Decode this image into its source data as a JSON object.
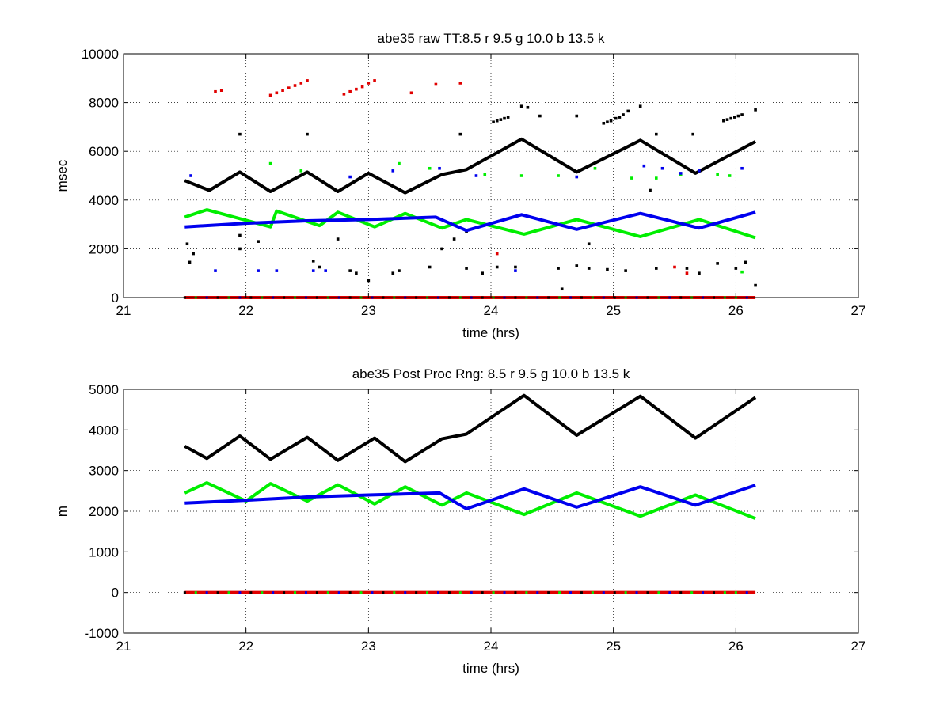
{
  "colors": {
    "red": "#e00000",
    "green": "#00ee00",
    "blue": "#0000ee",
    "black": "#000000"
  },
  "chart_data": [
    {
      "type": "scatter",
      "title": "abe35 raw TT:8.5 r  9.5 g  10.0 b  13.5 k",
      "xlabel": "time (hrs)",
      "ylabel": "msec",
      "xlim": [
        21,
        27
      ],
      "ylim": [
        0,
        10000
      ],
      "xticks": [
        21,
        22,
        23,
        24,
        25,
        26,
        27
      ],
      "yticks": [
        0,
        2000,
        4000,
        6000,
        8000,
        10000
      ],
      "grid": true,
      "series": [
        {
          "color": "black",
          "line": [
            [
              21.5,
              4800
            ],
            [
              21.7,
              4400
            ],
            [
              21.95,
              5150
            ],
            [
              22.2,
              4350
            ],
            [
              22.5,
              5150
            ],
            [
              22.75,
              4350
            ],
            [
              23.0,
              5100
            ],
            [
              23.3,
              4300
            ],
            [
              23.6,
              5050
            ],
            [
              23.8,
              5250
            ],
            [
              24.25,
              6500
            ],
            [
              24.7,
              5150
            ],
            [
              25.22,
              6450
            ],
            [
              25.67,
              5100
            ],
            [
              26.16,
              6400
            ]
          ],
          "points": [
            [
              21.52,
              2200
            ],
            [
              21.54,
              1450
            ],
            [
              21.57,
              1800
            ],
            [
              21.95,
              6700
            ],
            [
              21.95,
              2550
            ],
            [
              21.95,
              2000
            ],
            [
              22.1,
              2300
            ],
            [
              22.5,
              6700
            ],
            [
              22.55,
              1500
            ],
            [
              22.6,
              1250
            ],
            [
              22.75,
              2400
            ],
            [
              22.85,
              1100
            ],
            [
              22.9,
              1000
            ],
            [
              23.0,
              700
            ],
            [
              23.2,
              1000
            ],
            [
              23.25,
              1100
            ],
            [
              23.5,
              1250
            ],
            [
              23.6,
              2000
            ],
            [
              23.7,
              2400
            ],
            [
              23.75,
              6700
            ],
            [
              23.8,
              1200
            ],
            [
              23.8,
              2700
            ],
            [
              23.93,
              1000
            ],
            [
              24.05,
              1250
            ],
            [
              24.2,
              1250
            ],
            [
              24.55,
              1200
            ],
            [
              24.58,
              350
            ],
            [
              24.7,
              1300
            ],
            [
              24.8,
              1200
            ],
            [
              24.8,
              2200
            ],
            [
              24.95,
              1150
            ],
            [
              25.1,
              1100
            ],
            [
              25.3,
              4400
            ],
            [
              25.35,
              1200
            ],
            [
              25.6,
              1200
            ],
            [
              25.7,
              1000
            ],
            [
              25.85,
              1400
            ],
            [
              26.0,
              1200
            ],
            [
              26.08,
              1450
            ],
            [
              26.16,
              500
            ],
            [
              26.16,
              7700
            ],
            [
              24.02,
              7200
            ],
            [
              24.05,
              7250
            ],
            [
              24.08,
              7300
            ],
            [
              24.11,
              7350
            ],
            [
              24.14,
              7400
            ],
            [
              24.25,
              7850
            ],
            [
              24.3,
              7800
            ],
            [
              24.4,
              7450
            ],
            [
              24.7,
              7450
            ],
            [
              24.92,
              7150
            ],
            [
              24.95,
              7200
            ],
            [
              24.98,
              7250
            ],
            [
              25.02,
              7350
            ],
            [
              25.05,
              7400
            ],
            [
              25.08,
              7500
            ],
            [
              25.12,
              7650
            ],
            [
              25.22,
              7850
            ],
            [
              25.35,
              6700
            ],
            [
              25.65,
              6700
            ],
            [
              25.9,
              7250
            ],
            [
              25.93,
              7300
            ],
            [
              25.96,
              7350
            ],
            [
              25.99,
              7400
            ],
            [
              26.02,
              7450
            ],
            [
              26.05,
              7500
            ]
          ]
        },
        {
          "color": "green",
          "line": [
            [
              21.5,
              3300
            ],
            [
              21.68,
              3600
            ],
            [
              22.2,
              2900
            ],
            [
              22.25,
              3550
            ],
            [
              22.6,
              2950
            ],
            [
              22.75,
              3500
            ],
            [
              23.05,
              2900
            ],
            [
              23.3,
              3450
            ],
            [
              23.6,
              2850
            ],
            [
              23.8,
              3200
            ],
            [
              24.27,
              2600
            ],
            [
              24.7,
              3200
            ],
            [
              25.22,
              2500
            ],
            [
              25.7,
              3200
            ],
            [
              26.16,
              2450
            ]
          ],
          "points": [
            [
              22.2,
              5500
            ],
            [
              22.45,
              5200
            ],
            [
              23.25,
              5500
            ],
            [
              23.5,
              5300
            ],
            [
              23.95,
              5050
            ],
            [
              24.25,
              5000
            ],
            [
              24.55,
              5000
            ],
            [
              24.85,
              5300
            ],
            [
              25.15,
              4900
            ],
            [
              25.35,
              4900
            ],
            [
              25.55,
              5050
            ],
            [
              25.85,
              5050
            ],
            [
              25.95,
              5000
            ],
            [
              26.05,
              1050
            ]
          ]
        },
        {
          "color": "blue",
          "line": [
            [
              21.5,
              2900
            ],
            [
              22.0,
              3050
            ],
            [
              22.5,
              3150
            ],
            [
              23.0,
              3200
            ],
            [
              23.55,
              3300
            ],
            [
              23.8,
              2750
            ],
            [
              24.25,
              3400
            ],
            [
              24.7,
              2800
            ],
            [
              25.22,
              3450
            ],
            [
              25.7,
              2850
            ],
            [
              26.16,
              3500
            ]
          ],
          "points": [
            [
              21.55,
              5000
            ],
            [
              21.75,
              1100
            ],
            [
              22.1,
              1100
            ],
            [
              22.25,
              1100
            ],
            [
              22.55,
              1100
            ],
            [
              22.65,
              1100
            ],
            [
              22.85,
              4950
            ],
            [
              23.2,
              5200
            ],
            [
              23.58,
              5300
            ],
            [
              23.88,
              5000
            ],
            [
              24.2,
              1100
            ],
            [
              24.7,
              4950
            ],
            [
              25.25,
              5400
            ],
            [
              25.4,
              5300
            ],
            [
              25.55,
              5100
            ],
            [
              25.7,
              5200
            ],
            [
              26.05,
              5300
            ]
          ]
        },
        {
          "color": "red",
          "line": [],
          "points": [
            [
              21.75,
              8450
            ],
            [
              21.8,
              8500
            ],
            [
              22.2,
              8300
            ],
            [
              22.25,
              8400
            ],
            [
              22.3,
              8500
            ],
            [
              22.35,
              8600
            ],
            [
              22.4,
              8700
            ],
            [
              22.45,
              8800
            ],
            [
              22.5,
              8900
            ],
            [
              22.8,
              8350
            ],
            [
              22.85,
              8450
            ],
            [
              22.9,
              8550
            ],
            [
              22.95,
              8650
            ],
            [
              23.0,
              8800
            ],
            [
              23.05,
              8900
            ],
            [
              23.35,
              8400
            ],
            [
              23.55,
              8750
            ],
            [
              23.75,
              8800
            ],
            [
              24.05,
              1800
            ],
            [
              25.5,
              1250
            ],
            [
              25.6,
              1000
            ]
          ]
        }
      ],
      "baseline": {
        "y": 0,
        "xrange": [
          21.5,
          26.16
        ]
      }
    },
    {
      "type": "scatter",
      "title": "abe35 Post Proc Rng: 8.5 r  9.5 g  10.0 b  13.5  k",
      "xlabel": "time (hrs)",
      "ylabel": "m",
      "xlim": [
        21,
        27
      ],
      "ylim": [
        -1000,
        5000
      ],
      "xticks": [
        21,
        22,
        23,
        24,
        25,
        26,
        27
      ],
      "yticks": [
        -1000,
        0,
        1000,
        2000,
        3000,
        4000,
        5000
      ],
      "grid": true,
      "series": [
        {
          "color": "black",
          "line": [
            [
              21.5,
              3600
            ],
            [
              21.68,
              3300
            ],
            [
              21.95,
              3850
            ],
            [
              22.2,
              3280
            ],
            [
              22.5,
              3820
            ],
            [
              22.75,
              3250
            ],
            [
              23.05,
              3800
            ],
            [
              23.3,
              3220
            ],
            [
              23.6,
              3780
            ],
            [
              23.8,
              3900
            ],
            [
              24.27,
              4850
            ],
            [
              24.7,
              3870
            ],
            [
              25.22,
              4830
            ],
            [
              25.67,
              3800
            ],
            [
              26.16,
              4800
            ]
          ],
          "points": []
        },
        {
          "color": "green",
          "line": [
            [
              21.5,
              2450
            ],
            [
              21.68,
              2700
            ],
            [
              22.0,
              2250
            ],
            [
              22.2,
              2680
            ],
            [
              22.5,
              2250
            ],
            [
              22.75,
              2650
            ],
            [
              23.05,
              2180
            ],
            [
              23.3,
              2600
            ],
            [
              23.6,
              2150
            ],
            [
              23.8,
              2450
            ],
            [
              24.27,
              1920
            ],
            [
              24.7,
              2450
            ],
            [
              25.22,
              1880
            ],
            [
              25.67,
              2400
            ],
            [
              26.16,
              1820
            ]
          ],
          "points": []
        },
        {
          "color": "blue",
          "line": [
            [
              21.5,
              2200
            ],
            [
              22.0,
              2270
            ],
            [
              22.5,
              2350
            ],
            [
              23.0,
              2400
            ],
            [
              23.58,
              2450
            ],
            [
              23.8,
              2060
            ],
            [
              24.27,
              2550
            ],
            [
              24.7,
              2100
            ],
            [
              25.22,
              2600
            ],
            [
              25.67,
              2150
            ],
            [
              26.16,
              2640
            ]
          ],
          "points": []
        }
      ],
      "baseline": {
        "y": 0,
        "xrange": [
          21.5,
          26.16
        ]
      }
    }
  ]
}
